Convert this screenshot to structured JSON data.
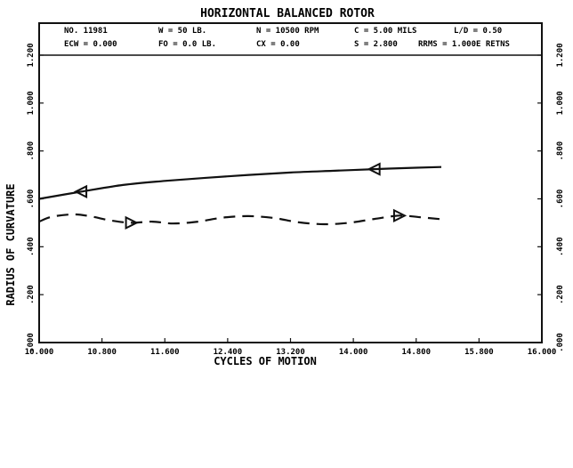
{
  "chart_data": {
    "type": "line",
    "title": "HORIZONTAL BALANCED ROTOR",
    "xlabel": "CYCLES OF MOTION",
    "ylabel": "RADIUS OF CURVATURE",
    "xlim": [
      10.0,
      16.0
    ],
    "ylim": [
      0.0,
      1.2
    ],
    "x_ticks": [
      "10.000",
      "10.800",
      "11.600",
      "12.400",
      "13.200",
      "14.000",
      "14.800",
      "15.800",
      "16.000"
    ],
    "y_ticks": [
      ".000",
      ".200",
      ".400",
      ".600",
      ".800",
      "1.000",
      "1.200"
    ],
    "header": {
      "row1": [
        "NO. 11981",
        "W = 50 LB.",
        "N = 10500 RPM",
        "C = 5.00 MILS",
        "L/D = 0.50"
      ],
      "row2": [
        "ECW = 0.000",
        "FO = 0.0 LB.",
        "CX = 0.00",
        "S = 2.800",
        "RRMS = 1.000E RETNS"
      ]
    },
    "series": [
      {
        "style": "solid",
        "arrow": "left",
        "x": [
          10.0,
          10.5,
          11.0,
          11.5,
          12.0,
          12.5,
          13.0,
          13.5,
          14.0,
          14.5,
          14.8
        ],
        "y": [
          0.6,
          0.63,
          0.658,
          0.675,
          0.688,
          0.7,
          0.71,
          0.717,
          0.724,
          0.73,
          0.733
        ]
      },
      {
        "style": "dashed",
        "arrow": "right",
        "x": [
          10.0,
          10.15,
          10.4,
          10.6,
          10.85,
          11.1,
          11.35,
          11.6,
          11.9,
          12.2,
          12.5,
          12.8,
          13.1,
          13.4,
          13.7,
          14.0,
          14.3,
          14.55,
          14.8
        ],
        "y": [
          0.505,
          0.525,
          0.535,
          0.528,
          0.51,
          0.5,
          0.505,
          0.497,
          0.505,
          0.522,
          0.528,
          0.52,
          0.502,
          0.494,
          0.5,
          0.516,
          0.53,
          0.523,
          0.515
        ]
      }
    ]
  }
}
